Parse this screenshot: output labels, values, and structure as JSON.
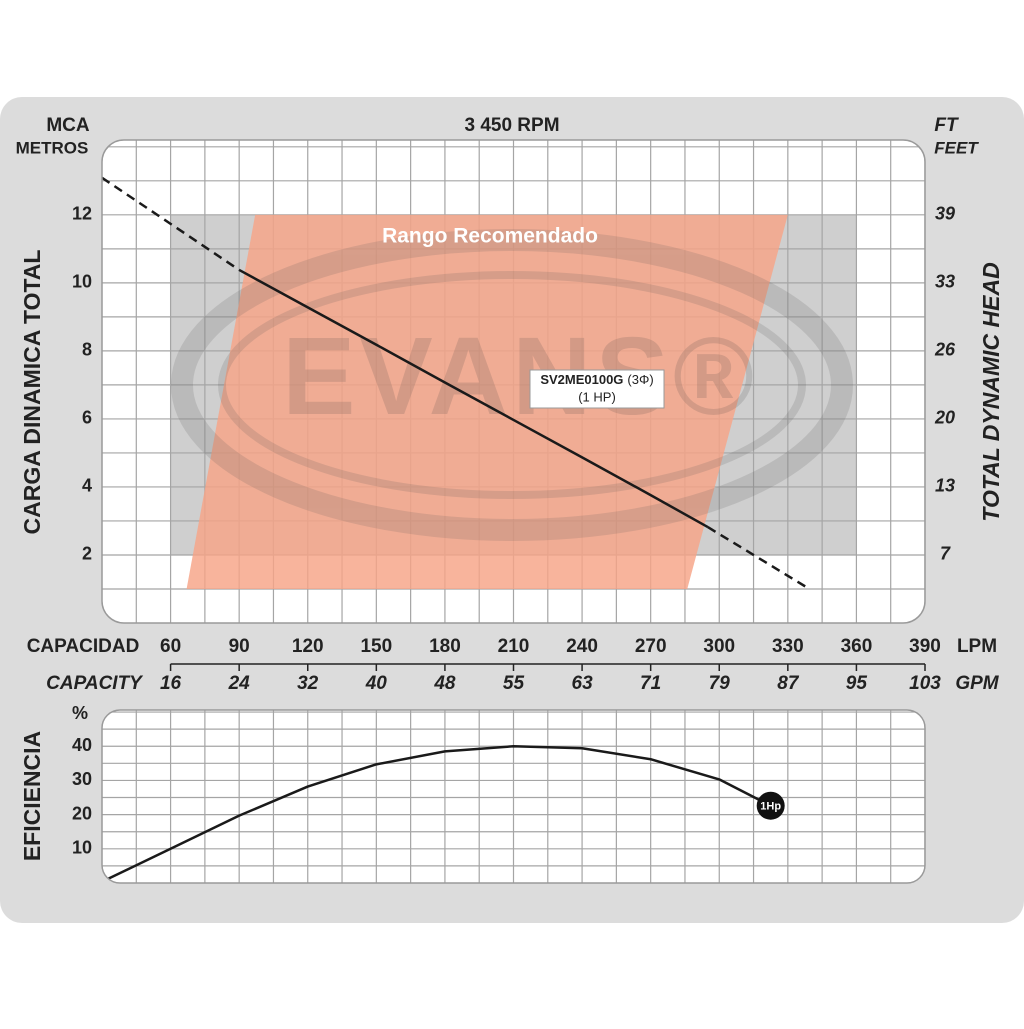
{
  "header": {
    "left_unit": "MCA",
    "left_unit2": "METROS",
    "title": "3 450 RPM",
    "right_unit": "FT",
    "right_unit2": "FEET"
  },
  "chart_data": [
    {
      "type": "line",
      "ylabel": "CARGA  DINAMICA  TOTAL",
      "y2label": "TOTAL  DYNAMIC  HEAD",
      "xlabel": "CAPACIDAD",
      "xunit": "LPM",
      "x2label": "CAPACITY",
      "x2unit": "GPM",
      "xlim": [
        30,
        390
      ],
      "xticks": [
        60,
        90,
        120,
        150,
        180,
        210,
        240,
        270,
        300,
        330,
        360,
        390
      ],
      "x2lim": [
        7.93,
        103.04
      ],
      "x2ticks": [
        {
          "value": 15.85,
          "label": "16"
        },
        {
          "value": 23.78,
          "label": "24"
        },
        {
          "value": 31.7,
          "label": "32"
        },
        {
          "value": 39.63,
          "label": "40"
        },
        {
          "value": 47.56,
          "label": "48"
        },
        {
          "value": 55.48,
          "label": "55"
        },
        {
          "value": 63.41,
          "label": "63"
        },
        {
          "value": 71.33,
          "label": "71"
        },
        {
          "value": 79.26,
          "label": "79"
        },
        {
          "value": 87.19,
          "label": "87"
        },
        {
          "value": 95.11,
          "label": "95"
        },
        {
          "value": 103.04,
          "label": "103"
        }
      ],
      "ylim": [
        0,
        14.2
      ],
      "yticks": [
        2,
        4,
        6,
        8,
        10,
        12
      ],
      "y2lim": [
        0,
        46.59
      ],
      "y2ticks": [
        {
          "value": 6.56,
          "label": "7"
        },
        {
          "value": 13.12,
          "label": "13"
        },
        {
          "value": 19.69,
          "label": "20"
        },
        {
          "value": 26.25,
          "label": "26"
        },
        {
          "value": 32.81,
          "label": "33"
        },
        {
          "value": 39.37,
          "label": "39"
        }
      ],
      "grid": true,
      "watermark": "EVANS®",
      "band": {
        "color": "#cfcfcf",
        "x": [
          60,
          360
        ],
        "y": [
          2,
          12
        ]
      },
      "region": {
        "label": "Rango Recomendado",
        "color": "#f7a386",
        "x": [
          97,
          330,
          286,
          67
        ],
        "y": [
          12,
          12,
          1,
          1
        ]
      },
      "segments": [
        {
          "style": "dashed",
          "color": "#1a1a1a",
          "x": [
            30,
            90
          ],
          "y": [
            13.09,
            10.38
          ]
        },
        {
          "style": "solid",
          "color": "#1a1a1a",
          "x": [
            90,
            120,
            150,
            180,
            210,
            240,
            270,
            295
          ],
          "y": [
            10.38,
            9.28,
            8.18,
            7.07,
            5.97,
            4.87,
            3.76,
            2.82
          ]
        },
        {
          "style": "dashed",
          "color": "#1a1a1a",
          "x": [
            295,
            338
          ],
          "y": [
            2.82,
            1.06
          ]
        }
      ],
      "curve_label": {
        "model": "SV2ME0100G",
        "phase": "(3Φ)",
        "power": "(1 HP)"
      }
    },
    {
      "type": "line",
      "ylabel": "EFICIENCIA",
      "yunit": "%",
      "xlim": [
        30,
        390
      ],
      "xticks": [
        60,
        90,
        120,
        150,
        180,
        210,
        240,
        270,
        300,
        330,
        360,
        390
      ],
      "ylim": [
        0,
        50.6
      ],
      "yticks": [
        10,
        20,
        30,
        40
      ],
      "grid": true,
      "color": "#1a1a1a",
      "x": [
        32.6,
        60,
        90,
        120,
        150,
        180,
        210,
        240,
        270,
        300,
        322.5
      ],
      "y": [
        1.2,
        10,
        19.7,
        28.2,
        34.7,
        38.5,
        40,
        39.4,
        36.2,
        30.3,
        22.6
      ],
      "end_marker": "1Hp"
    }
  ]
}
